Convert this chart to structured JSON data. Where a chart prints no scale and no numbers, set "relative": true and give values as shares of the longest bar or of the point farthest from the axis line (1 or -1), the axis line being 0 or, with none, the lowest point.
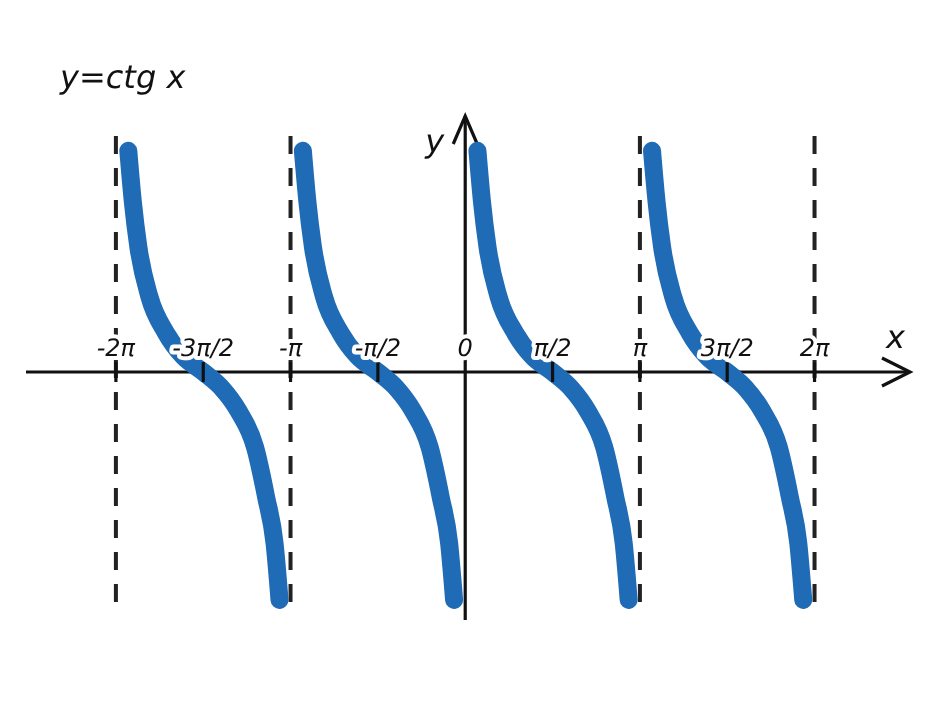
{
  "chart_data": {
    "type": "line",
    "title": "y=ctg x",
    "xlabel": "x",
    "ylabel": "y",
    "relative": true,
    "xlim": [
      -7.9,
      8.0
    ],
    "xticks": [
      {
        "value": -6.283,
        "label": "-2π"
      },
      {
        "value": -4.712,
        "label": "-3π/2"
      },
      {
        "value": -3.142,
        "label": "-π"
      },
      {
        "value": -1.571,
        "label": "-π/2"
      },
      {
        "value": 0,
        "label": "0"
      },
      {
        "value": 1.571,
        "label": "π/2"
      },
      {
        "value": 3.142,
        "label": "π"
      },
      {
        "value": 4.712,
        "label": "3π/2"
      },
      {
        "value": 6.283,
        "label": "2π"
      }
    ],
    "ref_lines": [
      {
        "axis": "x",
        "value": -6.283,
        "line_style": "dashed",
        "color": "#222222"
      },
      {
        "axis": "x",
        "value": -3.142,
        "line_style": "dashed",
        "color": "#222222"
      },
      {
        "axis": "x",
        "value": 3.142,
        "line_style": "dashed",
        "color": "#222222"
      },
      {
        "axis": "x",
        "value": 6.283,
        "line_style": "dashed",
        "color": "#222222"
      }
    ],
    "line_style": "solid",
    "grid": false,
    "series": [
      {
        "color": "#1f6bb5",
        "x": [
          -6.06,
          -5.98,
          -5.88,
          -5.68,
          -5.38,
          -5.08,
          -4.71,
          -4.38,
          -4.08,
          -3.78,
          -3.58,
          -3.43,
          -3.34
        ],
        "values": [
          0.97,
          0.75,
          0.55,
          0.33,
          0.17,
          0.07,
          0,
          -0.07,
          -0.17,
          -0.33,
          -0.55,
          -0.75,
          -1
        ]
      },
      {
        "color": "#1f6bb5",
        "x": [
          -2.92,
          -2.84,
          -2.74,
          -2.54,
          -2.24,
          -1.94,
          -1.57,
          -1.24,
          -0.94,
          -0.64,
          -0.44,
          -0.29,
          -0.2
        ],
        "values": [
          0.97,
          0.75,
          0.55,
          0.33,
          0.17,
          0.07,
          0,
          -0.07,
          -0.17,
          -0.33,
          -0.55,
          -0.75,
          -1
        ]
      },
      {
        "color": "#1f6bb5",
        "x": [
          0.22,
          0.3,
          0.4,
          0.6,
          0.9,
          1.2,
          1.57,
          1.9,
          2.2,
          2.5,
          2.7,
          2.85,
          2.94
        ],
        "values": [
          0.97,
          0.75,
          0.55,
          0.33,
          0.17,
          0.07,
          0,
          -0.07,
          -0.17,
          -0.33,
          -0.55,
          -0.75,
          -1
        ]
      },
      {
        "color": "#1f6bb5",
        "x": [
          3.36,
          3.44,
          3.54,
          3.74,
          4.04,
          4.34,
          4.71,
          5.04,
          5.34,
          5.64,
          5.84,
          5.99,
          6.08
        ],
        "values": [
          0.97,
          0.75,
          0.55,
          0.33,
          0.17,
          0.07,
          0,
          -0.07,
          -0.17,
          -0.33,
          -0.55,
          -0.75,
          -1
        ]
      }
    ]
  }
}
